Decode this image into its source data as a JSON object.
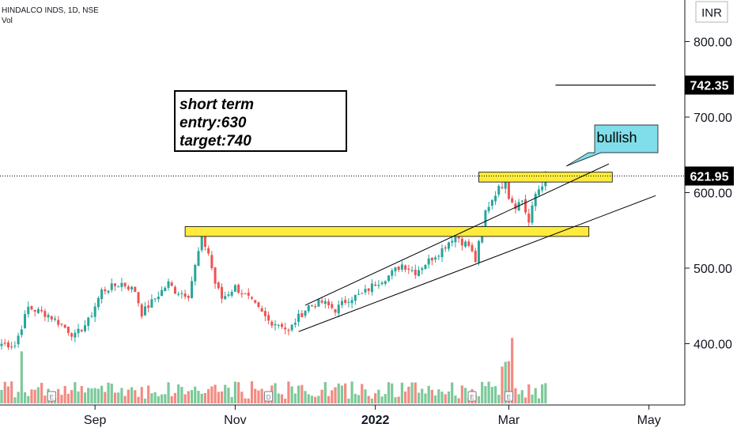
{
  "header": {
    "symbol_line": "HINDALCO INDS, 1D, NSE",
    "vol_label": "Vol"
  },
  "currency_label": "INR",
  "note": {
    "lines": [
      "short term",
      "entry:630",
      "target:740"
    ]
  },
  "callout": {
    "text": "bullish"
  },
  "colors": {
    "up": "#26a69a",
    "down": "#ef5350",
    "vol_up": "#7cc99a",
    "vol_down": "#f28b82",
    "zone": "#ffeb3b",
    "callout": "#80deea"
  },
  "chart_data": {
    "type": "candlestick",
    "title": "HINDALCO INDS, 1D, NSE",
    "currency": "INR",
    "y_axis": {
      "ticks": [
        {
          "value": 800,
          "label": "800.00"
        },
        {
          "value": 700,
          "label": "700.00"
        },
        {
          "value": 600,
          "label": "600.00"
        },
        {
          "value": 500,
          "label": "500.00"
        },
        {
          "value": 400,
          "label": "400.00"
        }
      ]
    },
    "x_axis": {
      "ticks": [
        {
          "label": "Sep",
          "index": 28
        },
        {
          "label": "Nov",
          "index": 70
        },
        {
          "label": "2022",
          "index": 112
        },
        {
          "label": "Mar",
          "index": 152
        },
        {
          "label": "May",
          "index": 194
        }
      ]
    },
    "price_labels": [
      {
        "value": 742.35,
        "text": "742.35"
      },
      {
        "value": 621.95,
        "text": "621.95"
      }
    ],
    "annotations": {
      "resistance_zones": [
        {
          "from_index": 55,
          "to_index": 176,
          "low": 542,
          "high": 555
        },
        {
          "from_index": 143,
          "to_index": 183,
          "low": 614,
          "high": 627
        }
      ],
      "channel_upper": [
        {
          "index": 91,
          "value": 451
        },
        {
          "index": 182,
          "value": 638
        }
      ],
      "channel_lower": [
        {
          "index": 89,
          "value": 416
        },
        {
          "index": 196,
          "value": 596
        }
      ],
      "target_line": {
        "from_index": 166,
        "to_index": 196,
        "value": 742.35
      },
      "current_price_line": 621.95,
      "event_markers": [
        "E",
        "D",
        "E",
        "E"
      ]
    },
    "waypoints": [
      [
        0,
        400
      ],
      [
        4,
        398
      ],
      [
        8,
        448
      ],
      [
        14,
        438
      ],
      [
        18,
        425
      ],
      [
        22,
        410
      ],
      [
        26,
        430
      ],
      [
        30,
        470
      ],
      [
        36,
        480
      ],
      [
        40,
        470
      ],
      [
        42,
        440
      ],
      [
        46,
        460
      ],
      [
        50,
        480
      ],
      [
        52,
        470
      ],
      [
        56,
        465
      ],
      [
        60,
        540
      ],
      [
        62,
        520
      ],
      [
        64,
        480
      ],
      [
        66,
        460
      ],
      [
        70,
        475
      ],
      [
        74,
        460
      ],
      [
        78,
        440
      ],
      [
        80,
        430
      ],
      [
        84,
        425
      ],
      [
        86,
        415
      ],
      [
        88,
        430
      ],
      [
        92,
        450
      ],
      [
        96,
        455
      ],
      [
        100,
        445
      ],
      [
        104,
        460
      ],
      [
        108,
        465
      ],
      [
        112,
        480
      ],
      [
        116,
        490
      ],
      [
        120,
        505
      ],
      [
        124,
        495
      ],
      [
        128,
        510
      ],
      [
        132,
        525
      ],
      [
        136,
        545
      ],
      [
        138,
        535
      ],
      [
        140,
        530
      ],
      [
        142,
        510
      ],
      [
        145,
        575
      ],
      [
        148,
        600
      ],
      [
        150,
        610
      ],
      [
        151,
        618
      ],
      [
        152,
        595
      ],
      [
        154,
        583
      ],
      [
        156,
        590
      ],
      [
        158,
        560
      ],
      [
        160,
        598
      ],
      [
        162,
        612
      ],
      [
        163,
        621.95
      ]
    ]
  }
}
